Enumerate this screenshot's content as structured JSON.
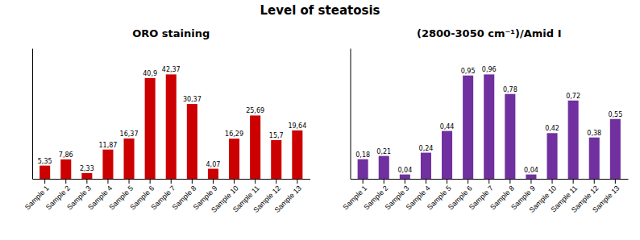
{
  "title": "Level of steatosis",
  "chart_data": [
    {
      "type": "bar",
      "title": "ORO staining",
      "categories": [
        "Sample 1",
        "Sample 2",
        "Sample 3",
        "Sample 4",
        "Sample 5",
        "Sample 6",
        "Sample 7",
        "Sample 8",
        "Sample 9",
        "Sample 10",
        "Sample 11",
        "Sample 12",
        "Sample 13"
      ],
      "values": [
        5.35,
        7.86,
        2.33,
        11.87,
        16.37,
        40.9,
        42.37,
        30.37,
        4.07,
        16.29,
        25.69,
        15.7,
        19.64
      ],
      "value_labels": [
        "5,35",
        "7,86",
        "2,33",
        "11,87",
        "16,37",
        "40,9",
        "42,37",
        "30,37",
        "4,07",
        "16,29",
        "25,69",
        "15,7",
        "19,64"
      ],
      "color": "#CC0000",
      "ylim": [
        0,
        52.9625
      ],
      "yticks": [],
      "grid": false,
      "data_labels": true,
      "tick_labels": "x"
    },
    {
      "type": "bar",
      "title": "(2800-3050 cm⁻¹)/Amid I",
      "categories": [
        "Sample 1",
        "Sample 2",
        "Sample 3",
        "Sample 4",
        "Sample 5",
        "Sample 6",
        "Sample 7",
        "Sample 8",
        "Sample 9",
        "Sample 10",
        "Sample 11",
        "Sample 12",
        "Sample 13"
      ],
      "values": [
        0.18,
        0.21,
        0.04,
        0.24,
        0.44,
        0.95,
        0.96,
        0.78,
        0.04,
        0.42,
        0.72,
        0.38,
        0.55
      ],
      "value_labels": [
        "0,18",
        "0,21",
        "0,04",
        "0,24",
        "0,44",
        "0,95",
        "0,96",
        "0,78",
        "0,04",
        "0,42",
        "0,72",
        "0,38",
        "0,55"
      ],
      "color": "#7030A0",
      "ylim": [
        0,
        1.2
      ],
      "yticks": [],
      "grid": false,
      "data_labels": true,
      "tick_labels": "x"
    }
  ]
}
